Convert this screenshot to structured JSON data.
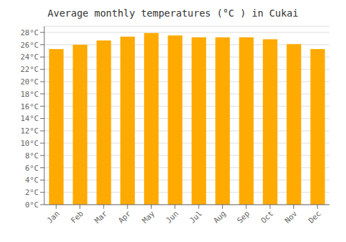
{
  "chart_data": {
    "type": "bar",
    "title": "Average monthly temperatures (°C ) in Cukai",
    "categories": [
      "Jan",
      "Feb",
      "Mar",
      "Apr",
      "May",
      "Jun",
      "Jul",
      "Aug",
      "Sep",
      "Oct",
      "Nov",
      "Dec"
    ],
    "values": [
      25.3,
      26.0,
      26.7,
      27.3,
      27.9,
      27.5,
      27.2,
      27.2,
      27.2,
      26.9,
      26.1,
      25.3
    ],
    "color": "#FFAA00",
    "ylim": [
      0,
      29
    ],
    "yticks": [
      {
        "value": 0,
        "label": "0°C"
      },
      {
        "value": 2,
        "label": "2°C"
      },
      {
        "value": 4,
        "label": "4°C"
      },
      {
        "value": 6,
        "label": "6°C"
      },
      {
        "value": 8,
        "label": "8°C"
      },
      {
        "value": 10,
        "label": "10°C"
      },
      {
        "value": 12,
        "label": "12°C"
      },
      {
        "value": 14,
        "label": "14°C"
      },
      {
        "value": 16,
        "label": "16°C"
      },
      {
        "value": 18,
        "label": "18°C"
      },
      {
        "value": 20,
        "label": "20°C"
      },
      {
        "value": 22,
        "label": "22°C"
      },
      {
        "value": 24,
        "label": "24°C"
      },
      {
        "value": 26,
        "label": "26°C"
      },
      {
        "value": 28,
        "label": "28°C"
      }
    ],
    "grid": true
  }
}
